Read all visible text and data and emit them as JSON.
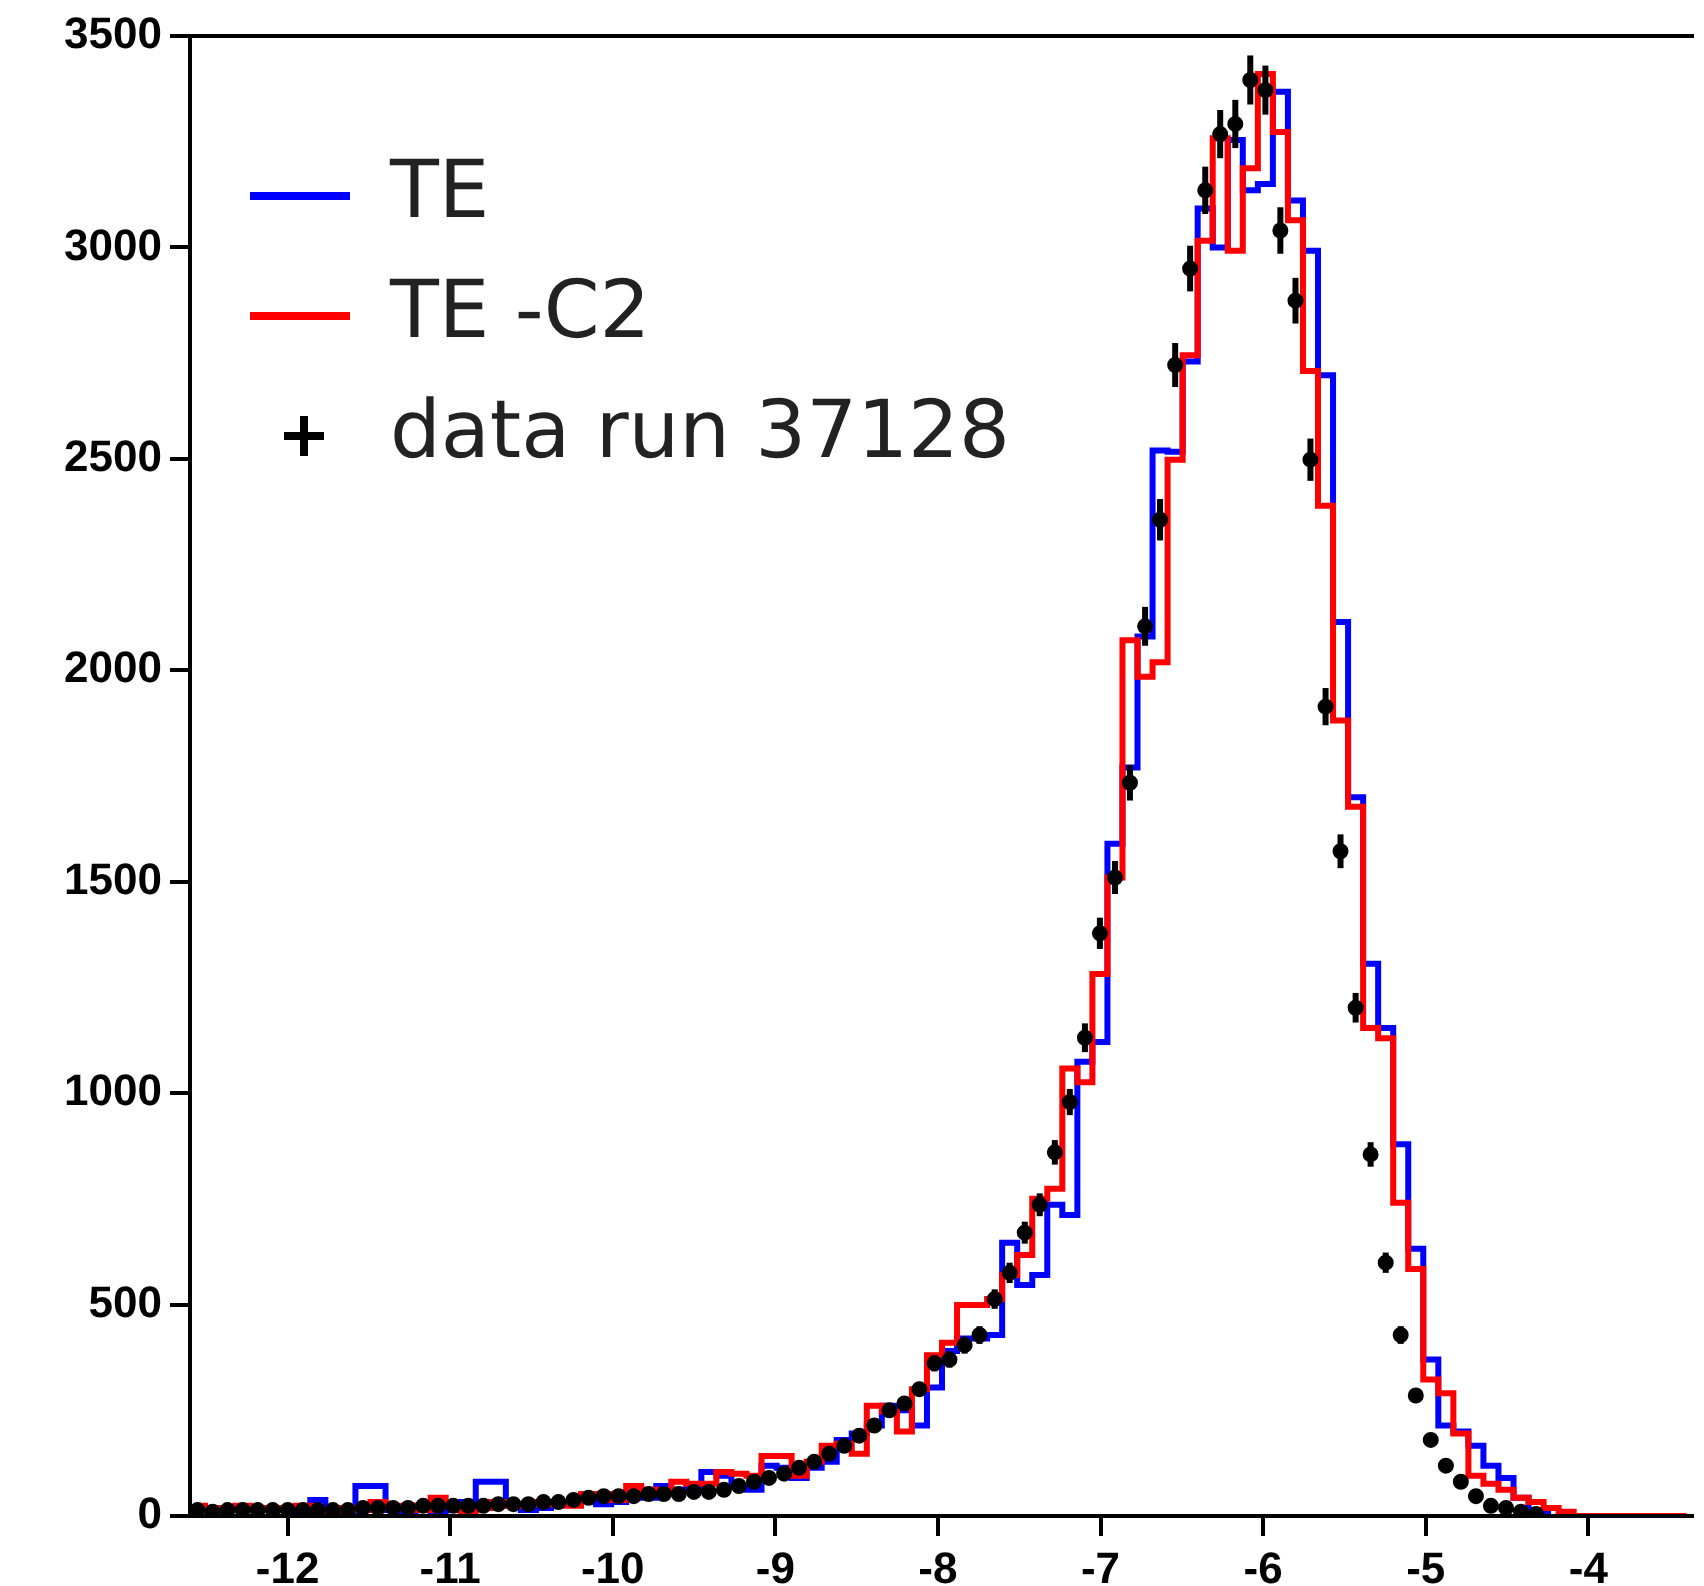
{
  "chart_data": {
    "type": "step",
    "legend": "top left",
    "x": [
      -12.554,
      -12.461,
      -12.369,
      -12.276,
      -12.184,
      -12.091,
      -11.999,
      -11.906,
      -11.814,
      -11.721,
      -11.629,
      -11.536,
      -11.444,
      -11.351,
      -11.259,
      -11.166,
      -11.074,
      -10.981,
      -10.889,
      -10.796,
      -10.704,
      -10.611,
      -10.519,
      -10.426,
      -10.334,
      -10.241,
      -10.149,
      -10.056,
      -9.964,
      -9.871,
      -9.779,
      -9.686,
      -9.594,
      -9.501,
      -9.409,
      -9.316,
      -9.224,
      -9.131,
      -9.039,
      -8.946,
      -8.854,
      -8.761,
      -8.669,
      -8.576,
      -8.484,
      -8.391,
      -8.299,
      -8.206,
      -8.114,
      -8.021,
      -7.929,
      -7.836,
      -7.744,
      -7.651,
      -7.559,
      -7.466,
      -7.374,
      -7.281,
      -7.189,
      -7.096,
      -7.004,
      -6.911,
      -6.819,
      -6.726,
      -6.634,
      -6.541,
      -6.449,
      -6.356,
      -6.264,
      -6.171,
      -6.079,
      -5.986,
      -5.894,
      -5.801,
      -5.709,
      -5.616,
      -5.524,
      -5.431,
      -5.339,
      -5.246,
      -5.154,
      -5.061,
      -4.969,
      -4.876,
      -4.784,
      -4.691,
      -4.599,
      -4.506,
      -4.414,
      -4.321,
      -4.229,
      -4.136,
      -4.044,
      -3.951,
      -3.859,
      -3.766,
      -3.674,
      -3.581,
      -3.489,
      -3.396
    ],
    "xlim": [
      -12.6,
      -3.35
    ],
    "ylim": [
      0,
      3500
    ],
    "xticks": [
      -12,
      -11,
      -10,
      -9,
      -8,
      -7,
      -6,
      -5,
      -4
    ],
    "yticks": [
      0,
      500,
      1000,
      1500,
      2000,
      2500,
      3000,
      3500
    ],
    "series": [
      {
        "name": "TE",
        "color": "#0000ff",
        "values": [
          null,
          null,
          null,
          null,
          null,
          null,
          14,
          10,
          38,
          14,
          10,
          71,
          71,
          14,
          10,
          24,
          10,
          14,
          33,
          81,
          81,
          24,
          14,
          19,
          24,
          null,
          33,
          28,
          33,
          52,
          43,
          71,
          62,
          66,
          104,
          95,
          71,
          62,
          119,
          114,
          90,
          114,
          128,
          180,
          195,
          214,
          261,
          250,
          214,
          304,
          390,
          420,
          420,
          428,
          646,
          546,
          570,
          736,
          712,
          1074,
          1121,
          1590,
          1770,
          2080,
          2520,
          2517,
          2730,
          3092,
          3000,
          3254,
          3135,
          3150,
          3368,
          3111,
          2992,
          2698,
          2114,
          1700,
          1306,
          1154,
          879,
          632,
          370,
          214,
          200,
          166,
          119,
          90,
          43,
          14,
          10,
          null,
          null,
          null,
          null,
          null,
          null,
          null,
          null,
          null
        ]
      },
      {
        "name": "TE -C2",
        "color": "#ff0000",
        "values": [
          24,
          19,
          14,
          24,
          19,
          14,
          19,
          24,
          14,
          10,
          19,
          14,
          33,
          19,
          24,
          14,
          43,
          24,
          10,
          19,
          33,
          24,
          28,
          33,
          28,
          24,
          52,
          52,
          38,
          71,
          62,
          57,
          81,
          76,
          76,
          104,
          100,
          95,
          142,
          142,
          95,
          128,
          166,
          171,
          147,
          261,
          247,
          200,
          300,
          380,
          410,
          499,
          499,
          513,
          570,
          617,
          750,
          774,
          1058,
          1026,
          1282,
          1510,
          2071,
          1985,
          2019,
          2498,
          2745,
          3016,
          3258,
          2992,
          3187,
          3410,
          3273,
          3064,
          2708,
          2389,
          1881,
          1677,
          1154,
          1130,
          741,
          584,
          323,
          290,
          195,
          95,
          76,
          62,
          43,
          33,
          19,
          10,
          0,
          0,
          0,
          0,
          0,
          0,
          0,
          0
        ]
      },
      {
        "name": "data run 37128",
        "type": "scatter",
        "color": "#000000",
        "marker": "circle",
        "x": [
          -12.554,
          -12.461,
          -12.369,
          -12.276,
          -12.184,
          -12.091,
          -11.999,
          -11.906,
          -11.814,
          -11.721,
          -11.629,
          -11.536,
          -11.444,
          -11.351,
          -11.259,
          -11.166,
          -11.074,
          -10.981,
          -10.889,
          -10.796,
          -10.704,
          -10.611,
          -10.519,
          -10.426,
          -10.334,
          -10.241,
          -10.149,
          -10.056,
          -9.964,
          -9.871,
          -9.779,
          -9.686,
          -9.594,
          -9.501,
          -9.409,
          -9.316,
          -9.224,
          -9.131,
          -9.039,
          -8.946,
          -8.854,
          -8.761,
          -8.669,
          -8.576,
          -8.484,
          -8.391,
          -8.299,
          -8.206,
          -8.114,
          -8.021,
          -7.929,
          -7.836,
          -7.744,
          -7.651,
          -7.559,
          -7.466,
          -7.374,
          -7.281,
          -7.189,
          -7.096,
          -7.004,
          -6.911,
          -6.819,
          -6.726,
          -6.634,
          -6.541,
          -6.449,
          -6.356,
          -6.264,
          -6.171,
          -6.079,
          -5.986,
          -5.894,
          -5.801,
          -5.709,
          -5.616,
          -5.524,
          -5.431,
          -5.339,
          -5.246,
          -5.154,
          -5.061,
          -4.969,
          -4.876,
          -4.784,
          -4.691,
          -4.599,
          -4.506,
          -4.414,
          -4.321
        ],
        "values": [
          14,
          10,
          14,
          14,
          14,
          14,
          14,
          14,
          14,
          14,
          14,
          19,
          19,
          19,
          19,
          24,
          24,
          24,
          24,
          24,
          28,
          28,
          28,
          33,
          33,
          38,
          43,
          47,
          47,
          47,
          52,
          52,
          52,
          57,
          57,
          62,
          71,
          81,
          90,
          100,
          114,
          128,
          147,
          166,
          190,
          214,
          250,
          266,
          300,
          361,
          370,
          404,
          428,
          513,
          575,
          670,
          736,
          860,
          979,
          1131,
          1378,
          1510,
          1734,
          2104,
          2356,
          2722,
          2950,
          3135,
          3268,
          3292,
          3396,
          3372,
          3040,
          2874,
          2498,
          1914,
          1572,
          1202,
          855,
          599,
          428,
          285,
          180,
          119,
          81,
          47,
          24,
          19,
          10,
          5
        ],
        "errors": [
          4,
          3,
          4,
          4,
          4,
          4,
          4,
          4,
          4,
          4,
          4,
          4,
          4,
          4,
          4,
          5,
          5,
          5,
          5,
          5,
          5,
          5,
          5,
          6,
          6,
          6,
          7,
          7,
          7,
          7,
          7,
          7,
          7,
          8,
          8,
          8,
          8,
          9,
          9,
          10,
          11,
          11,
          12,
          13,
          14,
          15,
          16,
          16,
          17,
          19,
          19,
          20,
          21,
          23,
          24,
          26,
          27,
          29,
          31,
          34,
          37,
          39,
          42,
          46,
          49,
          52,
          54,
          56,
          57,
          57,
          58,
          58,
          55,
          54,
          50,
          44,
          40,
          35,
          29,
          24,
          21,
          17,
          13,
          11,
          9,
          7,
          5,
          4,
          3,
          2
        ]
      }
    ]
  }
}
